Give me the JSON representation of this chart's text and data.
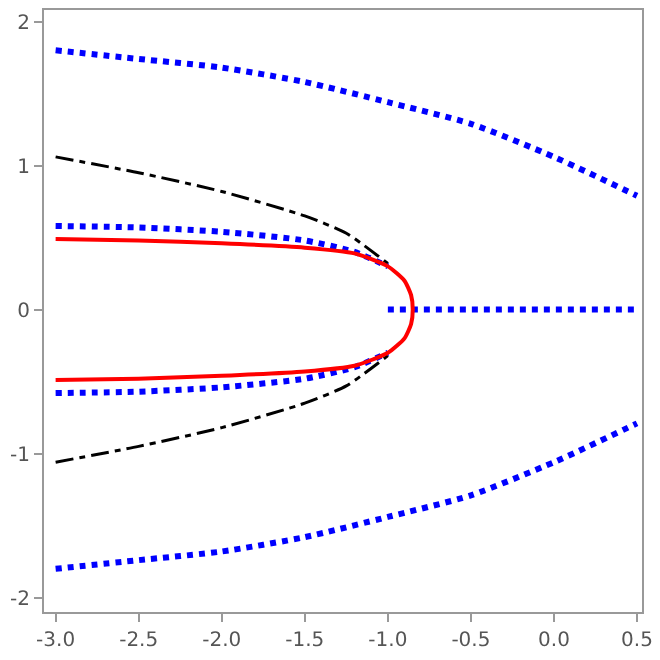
{
  "chart_data": {
    "type": "line",
    "xlim": [
      -3.07,
      0.53
    ],
    "ylim": [
      -2.1,
      2.08
    ],
    "xticks": [
      {
        "value": -3,
        "label": "-3.0"
      },
      {
        "value": -2.5,
        "label": "-2.5"
      },
      {
        "value": -2,
        "label": "-2.0"
      },
      {
        "value": -1.5,
        "label": "-1.5"
      },
      {
        "value": -1,
        "label": "-1.0"
      },
      {
        "value": -0.5,
        "label": "-0.5"
      },
      {
        "value": 0,
        "label": "0.0"
      },
      {
        "value": 0.5,
        "label": "0.5"
      }
    ],
    "yticks": [
      -2,
      -1,
      0,
      1,
      2
    ],
    "marker": "none",
    "series": [
      {
        "color": "#0000ff",
        "line_style": "dotted",
        "x": [
          -3,
          -2.5,
          -2,
          -1.5,
          -1,
          -0.5,
          0,
          0.5
        ],
        "values": [
          1.8,
          1.74,
          1.68,
          1.58,
          1.44,
          1.29,
          1.06,
          0.79
        ]
      },
      {
        "color": "#0000ff",
        "line_style": "dotted",
        "x": [
          -3,
          -2.5,
          -2,
          -1.5,
          -1,
          -0.5,
          0,
          0.5
        ],
        "values": [
          -1.8,
          -1.74,
          -1.68,
          -1.58,
          -1.44,
          -1.29,
          -1.06,
          -0.79
        ]
      },
      {
        "color": "#0000ff",
        "line_style": "dotted",
        "x": [
          -1,
          0.5
        ],
        "values": [
          0,
          0
        ]
      },
      {
        "color": "#000000",
        "line_style": "dashdot",
        "x": [
          -3,
          -2.5,
          -2,
          -1.5,
          -1.25,
          -1.0
        ],
        "values": [
          1.06,
          0.95,
          0.82,
          0.65,
          0.53,
          0.32
        ]
      },
      {
        "color": "#000000",
        "line_style": "dashdot",
        "x": [
          -3,
          -2.5,
          -2,
          -1.5,
          -1.25,
          -1.0
        ],
        "values": [
          -1.06,
          -0.95,
          -0.82,
          -0.65,
          -0.53,
          -0.32
        ]
      },
      {
        "color": "#0000ff",
        "line_style": "dotted",
        "x": [
          -3,
          -2.5,
          -2,
          -1.5,
          -1.2,
          -1.0
        ],
        "values": [
          0.58,
          0.57,
          0.54,
          0.48,
          0.4,
          0.3
        ]
      },
      {
        "color": "#0000ff",
        "line_style": "dotted",
        "x": [
          -3,
          -2.5,
          -2,
          -1.5,
          -1.2,
          -1.0
        ],
        "values": [
          -0.58,
          -0.57,
          -0.54,
          -0.48,
          -0.4,
          -0.3
        ]
      },
      {
        "color": "#ff0000",
        "line_style": "solid",
        "x": [
          -3,
          -2.5,
          -2,
          -1.5,
          -1.2,
          -1.0,
          -0.9,
          -0.86,
          -0.85,
          -0.86,
          -0.9,
          -1.0,
          -1.2,
          -1.5,
          -2,
          -2.5,
          -3
        ],
        "values": [
          0.49,
          0.48,
          0.46,
          0.43,
          0.39,
          0.3,
          0.2,
          0.1,
          0,
          -0.1,
          -0.2,
          -0.3,
          -0.39,
          -0.43,
          -0.46,
          -0.48,
          -0.49
        ]
      }
    ]
  }
}
